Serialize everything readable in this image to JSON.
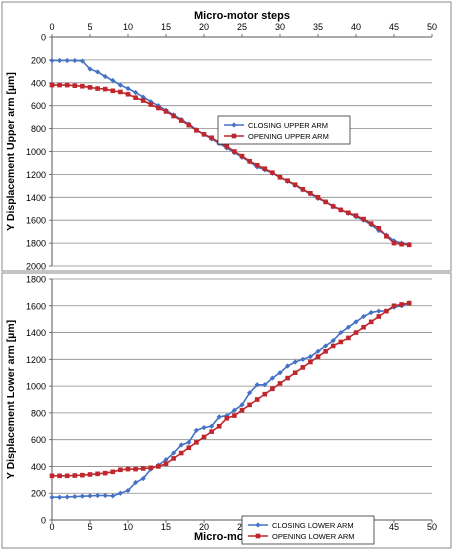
{
  "chart_data": [
    {
      "type": "line",
      "xlabel": "Micro-motor steps",
      "xlabel_position": "top",
      "ylabel": "Y Displacement Upper arm [µm]",
      "xlim": [
        0,
        50
      ],
      "ylim": [
        0,
        2000
      ],
      "y_inverted": true,
      "x_ticks": [
        "0",
        "5",
        "10",
        "15",
        "20",
        "25",
        "30",
        "35",
        "40",
        "45",
        "50"
      ],
      "y_ticks": [
        "0",
        "200",
        "400",
        "600",
        "800",
        "1000",
        "1200",
        "1400",
        "1600",
        "1800",
        "2000"
      ],
      "grid": "horizontal",
      "legend_position": "right-center",
      "series": [
        {
          "name": "CLOSING UPPER ARM",
          "color": "#4472C4",
          "marker": "diamond",
          "x": [
            0,
            1,
            2,
            3,
            4,
            5,
            6,
            7,
            8,
            9,
            10,
            11,
            12,
            13,
            14,
            15,
            16,
            17,
            18,
            19,
            20,
            21,
            22,
            23,
            24,
            25,
            26,
            27,
            28,
            29,
            30,
            31,
            32,
            33,
            34,
            35,
            36,
            37,
            38,
            39,
            40,
            41,
            42,
            43,
            44,
            45,
            46,
            47
          ],
          "y": [
            205,
            205,
            205,
            205,
            210,
            280,
            305,
            345,
            380,
            420,
            450,
            485,
            525,
            565,
            600,
            640,
            680,
            720,
            760,
            810,
            850,
            890,
            930,
            970,
            1010,
            1050,
            1090,
            1135,
            1160,
            1190,
            1225,
            1260,
            1295,
            1335,
            1370,
            1410,
            1440,
            1475,
            1510,
            1540,
            1570,
            1600,
            1640,
            1690,
            1730,
            1780,
            1800,
            1810
          ]
        },
        {
          "name": "OPENING UPPER ARM",
          "color": "#C0272D",
          "marker": "square",
          "x": [
            0,
            1,
            2,
            3,
            4,
            5,
            6,
            7,
            8,
            9,
            10,
            11,
            12,
            13,
            14,
            15,
            16,
            17,
            18,
            19,
            20,
            21,
            22,
            23,
            24,
            25,
            26,
            27,
            28,
            29,
            30,
            31,
            32,
            33,
            34,
            35,
            36,
            37,
            38,
            39,
            40,
            41,
            42,
            43,
            44,
            45,
            46,
            47
          ],
          "y": [
            420,
            420,
            420,
            425,
            430,
            440,
            450,
            455,
            470,
            480,
            500,
            530,
            555,
            590,
            620,
            650,
            690,
            730,
            770,
            815,
            850,
            880,
            920,
            955,
            1000,
            1040,
            1085,
            1120,
            1150,
            1185,
            1225,
            1255,
            1290,
            1330,
            1365,
            1400,
            1440,
            1480,
            1510,
            1535,
            1560,
            1590,
            1630,
            1670,
            1740,
            1800,
            1810,
            1815
          ]
        }
      ]
    },
    {
      "type": "line",
      "xlabel": "Micro-motor steps",
      "xlabel_position": "bottom",
      "ylabel": "Y Displacement Lower arm [µm]",
      "xlim": [
        0,
        50
      ],
      "ylim": [
        0,
        1800
      ],
      "y_inverted": false,
      "x_ticks": [
        "0",
        "5",
        "10",
        "15",
        "20",
        "25",
        "30",
        "35",
        "40",
        "45",
        "50"
      ],
      "y_ticks": [
        "0",
        "200",
        "400",
        "600",
        "800",
        "1000",
        "1200",
        "1400",
        "1600",
        "1800"
      ],
      "grid": "horizontal",
      "legend_position": "bottom-right",
      "series": [
        {
          "name": "CLOSING LOWER ARM",
          "color": "#4472C4",
          "marker": "diamond",
          "x": [
            0,
            1,
            2,
            3,
            4,
            5,
            6,
            7,
            8,
            9,
            10,
            11,
            12,
            13,
            14,
            15,
            16,
            17,
            18,
            19,
            20,
            21,
            22,
            23,
            24,
            25,
            26,
            27,
            28,
            29,
            30,
            31,
            32,
            33,
            34,
            35,
            36,
            37,
            38,
            39,
            40,
            41,
            42,
            43,
            44,
            45,
            46,
            47
          ],
          "y": [
            170,
            170,
            172,
            175,
            178,
            180,
            183,
            183,
            180,
            200,
            220,
            280,
            310,
            380,
            410,
            450,
            500,
            560,
            580,
            670,
            690,
            700,
            770,
            780,
            820,
            860,
            950,
            1010,
            1010,
            1060,
            1100,
            1150,
            1180,
            1200,
            1220,
            1260,
            1300,
            1340,
            1400,
            1440,
            1480,
            1520,
            1550,
            1560,
            1560,
            1590,
            1600,
            1620
          ]
        },
        {
          "name": "OPENING LOWER ARM",
          "color": "#C0272D",
          "marker": "square",
          "x": [
            0,
            1,
            2,
            3,
            4,
            5,
            6,
            7,
            8,
            9,
            10,
            11,
            12,
            13,
            14,
            15,
            16,
            17,
            18,
            19,
            20,
            21,
            22,
            23,
            24,
            25,
            26,
            27,
            28,
            29,
            30,
            31,
            32,
            33,
            34,
            35,
            36,
            37,
            38,
            39,
            40,
            41,
            42,
            43,
            44,
            45,
            46,
            47
          ],
          "y": [
            330,
            330,
            330,
            332,
            335,
            340,
            345,
            350,
            360,
            375,
            380,
            380,
            385,
            390,
            400,
            420,
            460,
            500,
            540,
            580,
            620,
            660,
            700,
            760,
            780,
            820,
            860,
            900,
            940,
            980,
            1020,
            1060,
            1100,
            1140,
            1180,
            1220,
            1260,
            1300,
            1330,
            1360,
            1400,
            1440,
            1480,
            1520,
            1560,
            1600,
            1610,
            1620
          ]
        }
      ]
    }
  ]
}
